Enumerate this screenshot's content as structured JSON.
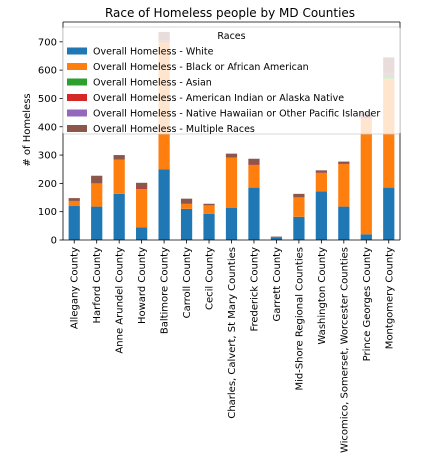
{
  "chart_data": {
    "type": "bar",
    "stacked": true,
    "title": "Race of Homeless people by MD Counties",
    "xlabel": "",
    "ylabel": "# of Homeless",
    "ylim": [
      0,
      770
    ],
    "yticks": [
      0,
      100,
      200,
      300,
      400,
      500,
      600,
      700
    ],
    "legend": {
      "title": "Races",
      "placement": "top-right"
    },
    "categories": [
      "Allegany County",
      "Harford County",
      "Anne Arundel County",
      "Howard County",
      "Baltimore County",
      "Carroll County",
      "Cecil County",
      "Charles, Calvert, St Mary Counties",
      "Frederick County",
      "Garrett County",
      "Mid-Shore Regional Counties",
      "Washington County",
      "Wicomico, Somerset, Worcester Counties",
      "Prince Georges County",
      "Montgomery County"
    ],
    "series": [
      {
        "name": "Overall Homeless - White",
        "color": "#1f77b4",
        "values": [
          120,
          118,
          163,
          45,
          250,
          110,
          92,
          113,
          185,
          10,
          82,
          172,
          118,
          20,
          185
        ]
      },
      {
        "name": "Overall Homeless - Black or African American",
        "color": "#ff7f0e",
        "values": [
          17,
          82,
          120,
          135,
          450,
          17,
          30,
          178,
          80,
          0,
          68,
          65,
          150,
          410,
          385
        ]
      },
      {
        "name": "Overall Homeless - Asian",
        "color": "#2ca02c",
        "values": [
          0,
          0,
          0,
          0,
          0,
          0,
          0,
          0,
          0,
          0,
          0,
          0,
          0,
          0,
          10
        ]
      },
      {
        "name": "Overall Homeless - American Indian or Alaska Native",
        "color": "#d62728",
        "values": [
          1,
          0,
          2,
          2,
          3,
          1,
          1,
          2,
          2,
          0,
          1,
          1,
          2,
          5,
          5
        ]
      },
      {
        "name": "Overall Homeless - Native Hawaiian or Other Pacific Islander",
        "color": "#9467bd",
        "values": [
          0,
          0,
          0,
          0,
          2,
          0,
          0,
          0,
          0,
          0,
          0,
          0,
          0,
          3,
          5
        ]
      },
      {
        "name": "Overall Homeless - Multiple Races",
        "color": "#8c564b",
        "values": [
          10,
          27,
          15,
          20,
          30,
          18,
          5,
          12,
          20,
          2,
          12,
          8,
          7,
          12,
          55
        ]
      }
    ]
  }
}
